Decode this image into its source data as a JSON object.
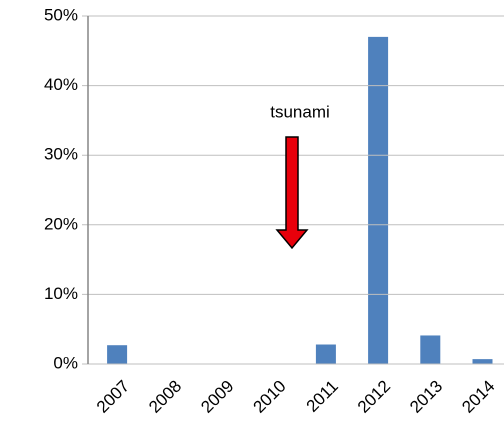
{
  "chart_data": {
    "type": "bar",
    "categories": [
      "2007",
      "2008",
      "2009",
      "2010",
      "2011",
      "2012",
      "2013",
      "2014"
    ],
    "values": [
      2.7,
      0,
      0,
      0,
      2.8,
      47,
      4.1,
      0.7
    ],
    "color": "#4f81bd",
    "ylim": [
      0,
      50
    ],
    "yticks": [
      {
        "value": 0,
        "label": "0%"
      },
      {
        "value": 10,
        "label": "10%"
      },
      {
        "value": 20,
        "label": "20%"
      },
      {
        "value": 30,
        "label": "30%"
      },
      {
        "value": 40,
        "label": "40%"
      },
      {
        "value": 50,
        "label": "50%"
      }
    ],
    "grid": true,
    "annotation": "tsunami"
  }
}
